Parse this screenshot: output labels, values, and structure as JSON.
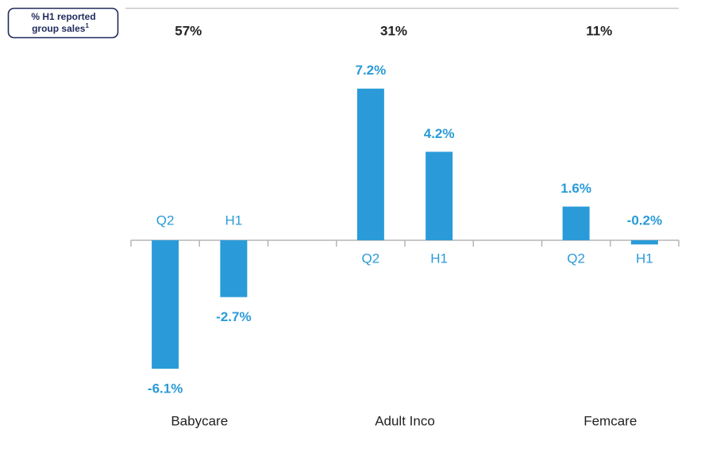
{
  "chart_data": {
    "type": "bar",
    "header": {
      "line1": "% H1 reported",
      "line2": "group sales",
      "footnote": "1"
    },
    "categories": [
      "Babycare",
      "Adult Inco",
      "Femcare"
    ],
    "shares": [
      "57%",
      "31%",
      "11%"
    ],
    "series": [
      {
        "name": "Q2",
        "color": "#2a9bd8",
        "values": [
          -6.1,
          7.2,
          1.6
        ],
        "value_labels": [
          "-6.1%",
          "7.2%",
          "1.6%"
        ]
      },
      {
        "name": "H1",
        "color": "#2a9bd8",
        "values": [
          -2.7,
          4.2,
          -0.2
        ],
        "value_labels": [
          "-2.7%",
          "4.2%",
          "-0.2%"
        ]
      }
    ],
    "ylim": [
      -8,
      8
    ],
    "grid": false
  }
}
